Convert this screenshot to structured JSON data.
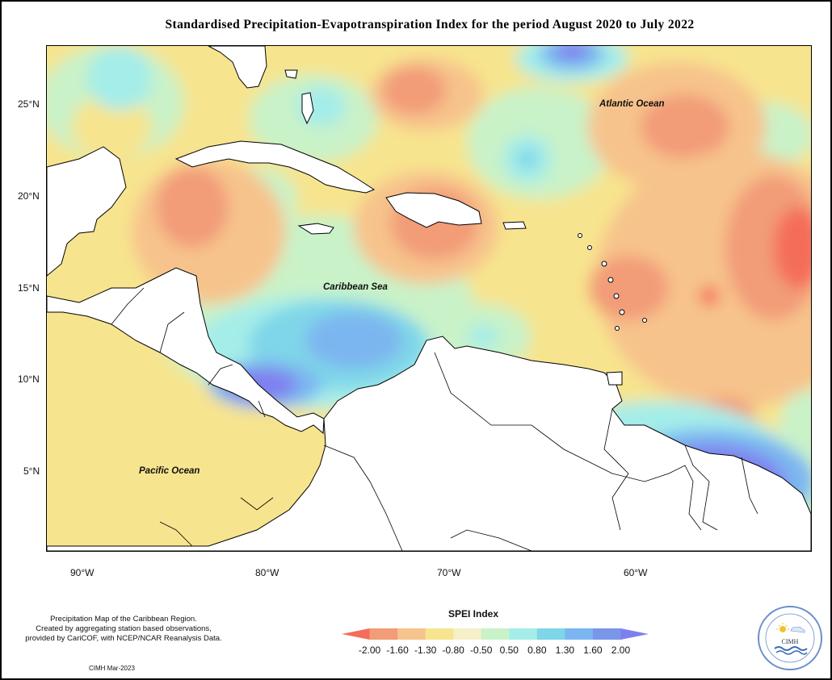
{
  "title": "Standardised Precipitation-Evapotranspiration Index for the period August 2020 to July 2022",
  "axes": {
    "lat_labels": [
      "25°N",
      "20°N",
      "15°N",
      "10°N",
      "5°N"
    ],
    "lon_labels": [
      "90°W",
      "80°W",
      "70°W",
      "60°W"
    ]
  },
  "places": {
    "atlantic": "Atlantic Ocean",
    "caribbean": "Caribbean Sea",
    "pacific": "Pacific Ocean"
  },
  "footer": {
    "note_line1": "Precipitation Map of the Caribbean Region.",
    "note_line2": "Created by aggregating station based observations,",
    "note_line3": "provided by CariCOF, with NCEP/NCAR Reanalysis Data.",
    "credit": "CIMH Mar-2023",
    "logo_text": "CIMH"
  },
  "legend": {
    "title": "SPEI Index",
    "ticks": [
      "-2.00",
      "-1.60",
      "-1.30",
      "-0.80",
      "-0.50",
      "0.50",
      "0.80",
      "1.30",
      "1.60",
      "2.00"
    ],
    "colors": [
      "#f46d5a",
      "#f29c78",
      "#f7c38c",
      "#f7e48e",
      "#f5f0c8",
      "#c9f2c8",
      "#a4ede9",
      "#7fd6e8",
      "#7cb6f0",
      "#7a96e8",
      "#7f80ef"
    ]
  }
}
